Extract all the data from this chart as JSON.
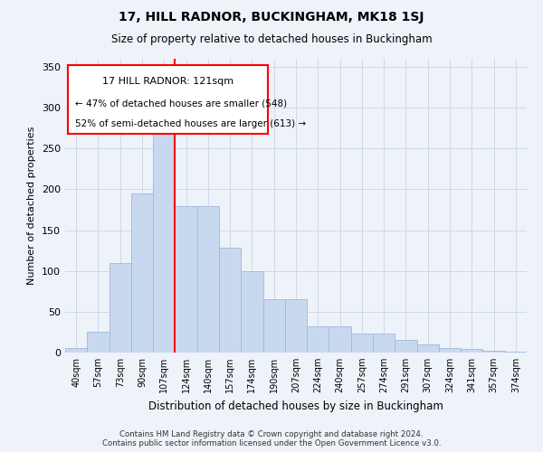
{
  "title1": "17, HILL RADNOR, BUCKINGHAM, MK18 1SJ",
  "title2": "Size of property relative to detached houses in Buckingham",
  "xlabel": "Distribution of detached houses by size in Buckingham",
  "ylabel": "Number of detached properties",
  "bar_labels": [
    "40sqm",
    "57sqm",
    "73sqm",
    "90sqm",
    "107sqm",
    "124sqm",
    "140sqm",
    "157sqm",
    "174sqm",
    "190sqm",
    "207sqm",
    "224sqm",
    "240sqm",
    "257sqm",
    "274sqm",
    "291sqm",
    "307sqm",
    "324sqm",
    "341sqm",
    "357sqm",
    "374sqm"
  ],
  "bar_values": [
    5,
    25,
    110,
    195,
    290,
    180,
    180,
    128,
    100,
    65,
    65,
    32,
    32,
    23,
    23,
    15,
    10,
    5,
    4,
    2,
    1
  ],
  "bar_color": "#c8d9ef",
  "bar_edge_color": "#a0b8d8",
  "vline_x_bar_index": 4,
  "vline_color": "red",
  "ylim": [
    0,
    360
  ],
  "yticks": [
    0,
    50,
    100,
    150,
    200,
    250,
    300,
    350
  ],
  "annotation_title": "17 HILL RADNOR: 121sqm",
  "annotation_line1": "← 47% of detached houses are smaller (548)",
  "annotation_line2": "52% of semi-detached houses are larger (613) →",
  "footer1": "Contains HM Land Registry data © Crown copyright and database right 2024.",
  "footer2": "Contains public sector information licensed under the Open Government Licence v3.0.",
  "bg_color": "#eef2f9",
  "grid_color": "#d0d8e8"
}
